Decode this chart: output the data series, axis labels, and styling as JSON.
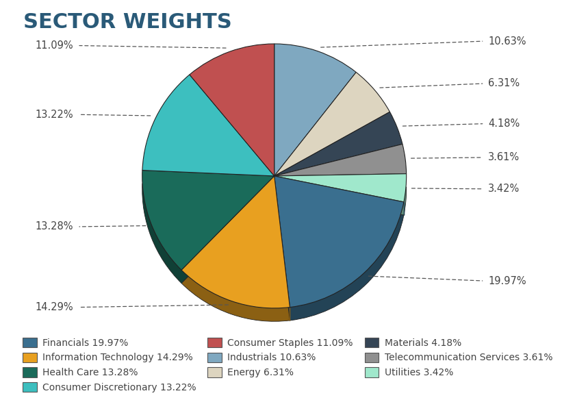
{
  "title": "SECTOR WEIGHTS",
  "sectors": [
    {
      "name": "Financials",
      "value": 19.97,
      "color": "#3a6f8f"
    },
    {
      "name": "Information Technology",
      "value": 14.29,
      "color": "#e8a020"
    },
    {
      "name": "Health Care",
      "value": 13.28,
      "color": "#1a6b5a"
    },
    {
      "name": "Consumer Discretionary",
      "value": 13.22,
      "color": "#3dbfbf"
    },
    {
      "name": "Consumer Staples",
      "value": 11.09,
      "color": "#c05050"
    },
    {
      "name": "Industrials",
      "value": 10.63,
      "color": "#7fa8c0"
    },
    {
      "name": "Energy",
      "value": 6.31,
      "color": "#ddd5c0"
    },
    {
      "name": "Materials",
      "value": 4.18,
      "color": "#354555"
    },
    {
      "name": "Telecommunication Services",
      "value": 3.61,
      "color": "#909090"
    },
    {
      "name": "Utilities",
      "value": 3.42,
      "color": "#a0e8cc"
    }
  ],
  "background_color": "#ffffff",
  "title_color": "#2a5a78",
  "label_color": "#444444",
  "label_fontsize": 10.5,
  "title_fontsize": 22,
  "legend_fontsize": 10,
  "edge_color": "#222222",
  "depth": 0.1
}
